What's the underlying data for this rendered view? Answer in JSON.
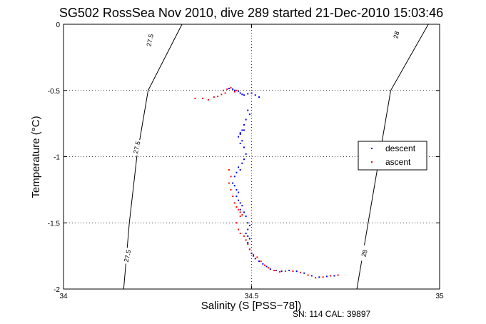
{
  "chart_data": {
    "type": "scatter",
    "title": "SG502 RossSea Nov 2010, dive 289 started 21-Dec-2010 15:03:46",
    "xlabel": "Salinity (S [PSS−78])",
    "ylabel": "Temperature (°C)",
    "xlim": [
      34,
      35
    ],
    "ylim": [
      -2,
      0
    ],
    "xticks": [
      34,
      34.5,
      35
    ],
    "yticks": [
      0,
      -0.5,
      -1,
      -1.5,
      -2
    ],
    "xtick_labels": [
      "34",
      "34.5",
      "35"
    ],
    "ytick_labels": [
      "0",
      "-0.5",
      "-1",
      "-1.5",
      "-2"
    ],
    "grid": "dotted, at x=34.5 and y=-0.5,-1,-1.5",
    "legend": {
      "placement": "right",
      "entries": [
        {
          "name": "descent",
          "color": "#0000ff"
        },
        {
          "name": "ascent",
          "color": "#ff0000"
        }
      ]
    },
    "contours": [
      {
        "label": "27.5",
        "points": [
          [
            34.315,
            0
          ],
          [
            34.225,
            -0.5
          ],
          [
            34.195,
            -1
          ],
          [
            34.175,
            -1.5
          ],
          [
            34.16,
            -2
          ]
        ],
        "label_positions": [
          [
            34.23,
            -0.12
          ],
          [
            34.195,
            -0.93
          ],
          [
            34.17,
            -1.75
          ]
        ]
      },
      {
        "label": "28",
        "points": [
          [
            34.97,
            0
          ],
          [
            34.87,
            -0.5
          ],
          [
            34.84,
            -1
          ],
          [
            34.81,
            -1.5
          ],
          [
            34.78,
            -2
          ]
        ],
        "label_positions": [
          [
            34.885,
            -0.08
          ],
          [
            34.8,
            -1.73
          ]
        ]
      }
    ],
    "series": [
      {
        "name": "descent",
        "color": "#0000ff",
        "points": [
          [
            34.44,
            -0.485
          ],
          [
            34.45,
            -0.49
          ],
          [
            34.455,
            -0.5
          ],
          [
            34.465,
            -0.505
          ],
          [
            34.47,
            -0.52
          ],
          [
            34.475,
            -0.53
          ],
          [
            34.48,
            -0.535
          ],
          [
            34.49,
            -0.525
          ],
          [
            34.5,
            -0.52
          ],
          [
            34.51,
            -0.535
          ],
          [
            34.52,
            -0.55
          ],
          [
            34.49,
            -0.65
          ],
          [
            34.495,
            -0.68
          ],
          [
            34.485,
            -0.72
          ],
          [
            34.48,
            -0.76
          ],
          [
            34.48,
            -0.8
          ],
          [
            34.475,
            -0.8
          ],
          [
            34.47,
            -0.82
          ],
          [
            34.465,
            -0.85
          ],
          [
            34.47,
            -0.83
          ],
          [
            34.475,
            -0.88
          ],
          [
            34.47,
            -0.9
          ],
          [
            34.48,
            -0.93
          ],
          [
            34.485,
            -0.98
          ],
          [
            34.48,
            -1.02
          ],
          [
            34.475,
            -1.05
          ],
          [
            34.465,
            -1.08
          ],
          [
            34.47,
            -1.1
          ],
          [
            34.46,
            -1.12
          ],
          [
            34.455,
            -1.15
          ],
          [
            34.45,
            -1.2
          ],
          [
            34.455,
            -1.22
          ],
          [
            34.46,
            -1.25
          ],
          [
            34.465,
            -1.27
          ],
          [
            34.46,
            -1.3
          ],
          [
            34.465,
            -1.33
          ],
          [
            34.47,
            -1.35
          ],
          [
            34.475,
            -1.37
          ],
          [
            34.47,
            -1.4
          ],
          [
            34.48,
            -1.42
          ],
          [
            34.485,
            -1.45
          ],
          [
            34.49,
            -1.5
          ],
          [
            34.495,
            -1.52
          ],
          [
            34.49,
            -1.55
          ],
          [
            34.485,
            -1.58
          ],
          [
            34.49,
            -1.6
          ],
          [
            34.495,
            -1.62
          ],
          [
            34.49,
            -1.65
          ],
          [
            34.495,
            -1.7
          ],
          [
            34.5,
            -1.73
          ],
          [
            34.505,
            -1.75
          ],
          [
            34.51,
            -1.77
          ],
          [
            34.52,
            -1.79
          ],
          [
            34.53,
            -1.81
          ],
          [
            34.54,
            -1.83
          ],
          [
            34.55,
            -1.85
          ],
          [
            34.565,
            -1.86
          ],
          [
            34.58,
            -1.865
          ],
          [
            34.6,
            -1.86
          ],
          [
            34.62,
            -1.865
          ],
          [
            34.64,
            -1.88
          ],
          [
            34.66,
            -1.9
          ],
          [
            34.68,
            -1.91
          ],
          [
            34.7,
            -1.905
          ],
          [
            34.72,
            -1.9
          ]
        ]
      },
      {
        "name": "ascent",
        "color": "#ff0000",
        "points": [
          [
            34.35,
            -0.56
          ],
          [
            34.37,
            -0.56
          ],
          [
            34.385,
            -0.57
          ],
          [
            34.4,
            -0.55
          ],
          [
            34.41,
            -0.545
          ],
          [
            34.42,
            -0.53
          ],
          [
            34.43,
            -0.52
          ],
          [
            34.425,
            -0.5
          ],
          [
            34.435,
            -0.49
          ],
          [
            34.445,
            -0.48
          ],
          [
            34.46,
            -0.5
          ],
          [
            34.455,
            -0.51
          ],
          [
            34.44,
            -1.1
          ],
          [
            34.445,
            -1.15
          ],
          [
            34.44,
            -1.2
          ],
          [
            34.445,
            -1.25
          ],
          [
            34.45,
            -1.3
          ],
          [
            34.455,
            -1.35
          ],
          [
            34.46,
            -1.38
          ],
          [
            34.465,
            -1.4
          ],
          [
            34.47,
            -1.42
          ],
          [
            34.475,
            -1.44
          ],
          [
            34.47,
            -1.45
          ],
          [
            34.46,
            -1.5
          ],
          [
            34.465,
            -1.55
          ],
          [
            34.47,
            -1.58
          ],
          [
            34.48,
            -1.6
          ],
          [
            34.485,
            -1.63
          ],
          [
            34.49,
            -1.66
          ],
          [
            34.495,
            -1.7
          ],
          [
            34.505,
            -1.74
          ],
          [
            34.515,
            -1.76
          ],
          [
            34.525,
            -1.79
          ],
          [
            34.535,
            -1.82
          ],
          [
            34.545,
            -1.84
          ],
          [
            34.56,
            -1.86
          ],
          [
            34.575,
            -1.87
          ],
          [
            34.59,
            -1.865
          ],
          [
            34.61,
            -1.865
          ],
          [
            34.63,
            -1.875
          ],
          [
            34.65,
            -1.895
          ],
          [
            34.67,
            -1.915
          ],
          [
            34.69,
            -1.91
          ],
          [
            34.71,
            -1.9
          ],
          [
            34.73,
            -1.895
          ]
        ]
      }
    ]
  },
  "footer": "SN: 114  CAL: 39897"
}
